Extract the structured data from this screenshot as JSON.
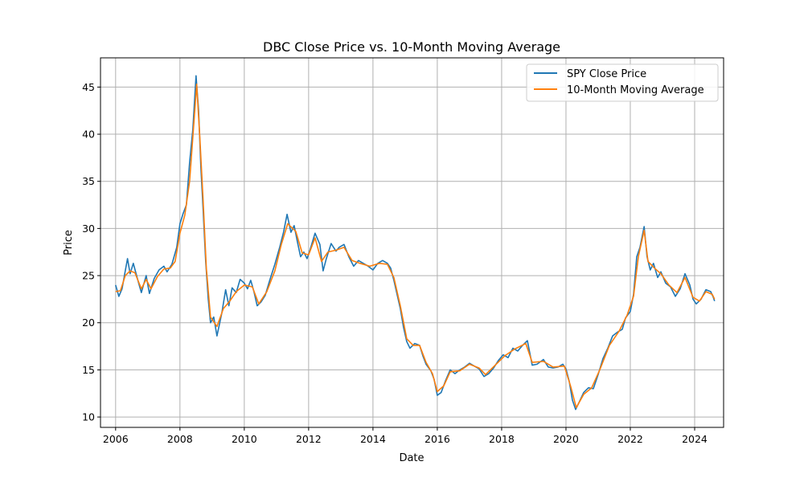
{
  "chart_data": {
    "type": "line",
    "title": "DBC Close Price vs. 10-Month Moving Average",
    "xlabel": "Date",
    "ylabel": "Price",
    "xlim": [
      2005.53,
      2024.9
    ],
    "ylim": [
      8.9,
      48.1
    ],
    "x_ticks": [
      2006,
      2008,
      2010,
      2012,
      2014,
      2016,
      2018,
      2020,
      2022,
      2024
    ],
    "x_tick_labels": [
      "2006",
      "2008",
      "2010",
      "2012",
      "2014",
      "2016",
      "2018",
      "2020",
      "2022",
      "2024"
    ],
    "y_ticks": [
      10,
      15,
      20,
      25,
      30,
      35,
      40,
      45
    ],
    "y_tick_labels": [
      "10",
      "15",
      "20",
      "25",
      "30",
      "35",
      "40",
      "45"
    ],
    "grid": true,
    "legend_position": "upper right",
    "series": [
      {
        "name": "SPY Close Price",
        "color": "#1f77b4",
        "points": [
          [
            2006.0,
            24.0
          ],
          [
            2006.1,
            22.8
          ],
          [
            2006.2,
            23.6
          ],
          [
            2006.3,
            25.5
          ],
          [
            2006.37,
            26.8
          ],
          [
            2006.45,
            25.2
          ],
          [
            2006.55,
            26.3
          ],
          [
            2006.7,
            24.4
          ],
          [
            2006.8,
            23.2
          ],
          [
            2006.95,
            25.0
          ],
          [
            2007.05,
            23.1
          ],
          [
            2007.2,
            24.7
          ],
          [
            2007.35,
            25.6
          ],
          [
            2007.5,
            26.0
          ],
          [
            2007.6,
            25.4
          ],
          [
            2007.75,
            26.2
          ],
          [
            2007.9,
            28.0
          ],
          [
            2008.0,
            30.5
          ],
          [
            2008.1,
            31.6
          ],
          [
            2008.2,
            32.5
          ],
          [
            2008.3,
            37.0
          ],
          [
            2008.4,
            40.5
          ],
          [
            2008.5,
            46.2
          ],
          [
            2008.58,
            42.5
          ],
          [
            2008.65,
            36.5
          ],
          [
            2008.72,
            32.0
          ],
          [
            2008.8,
            26.5
          ],
          [
            2008.88,
            22.5
          ],
          [
            2008.95,
            20.0
          ],
          [
            2009.05,
            20.6
          ],
          [
            2009.15,
            18.6
          ],
          [
            2009.3,
            21.0
          ],
          [
            2009.42,
            23.5
          ],
          [
            2009.52,
            21.8
          ],
          [
            2009.62,
            23.7
          ],
          [
            2009.75,
            23.2
          ],
          [
            2009.87,
            24.6
          ],
          [
            2010.0,
            24.2
          ],
          [
            2010.1,
            23.6
          ],
          [
            2010.2,
            24.5
          ],
          [
            2010.3,
            23.3
          ],
          [
            2010.4,
            21.8
          ],
          [
            2010.52,
            22.2
          ],
          [
            2010.65,
            22.9
          ],
          [
            2010.8,
            24.6
          ],
          [
            2010.95,
            26.2
          ],
          [
            2011.1,
            28.0
          ],
          [
            2011.22,
            29.6
          ],
          [
            2011.33,
            31.5
          ],
          [
            2011.45,
            29.6
          ],
          [
            2011.55,
            30.3
          ],
          [
            2011.65,
            28.6
          ],
          [
            2011.75,
            27.0
          ],
          [
            2011.85,
            27.5
          ],
          [
            2011.95,
            26.8
          ],
          [
            2012.05,
            27.8
          ],
          [
            2012.2,
            29.5
          ],
          [
            2012.35,
            28.3
          ],
          [
            2012.45,
            25.5
          ],
          [
            2012.55,
            26.8
          ],
          [
            2012.7,
            28.4
          ],
          [
            2012.85,
            27.6
          ],
          [
            2012.95,
            28.0
          ],
          [
            2013.1,
            28.3
          ],
          [
            2013.25,
            27.0
          ],
          [
            2013.4,
            26.0
          ],
          [
            2013.55,
            26.6
          ],
          [
            2013.7,
            26.3
          ],
          [
            2013.85,
            26.0
          ],
          [
            2014.0,
            25.6
          ],
          [
            2014.15,
            26.3
          ],
          [
            2014.3,
            26.6
          ],
          [
            2014.45,
            26.3
          ],
          [
            2014.55,
            25.8
          ],
          [
            2014.65,
            24.5
          ],
          [
            2014.75,
            23.0
          ],
          [
            2014.85,
            21.5
          ],
          [
            2014.95,
            19.5
          ],
          [
            2015.05,
            18.0
          ],
          [
            2015.15,
            17.3
          ],
          [
            2015.3,
            17.8
          ],
          [
            2015.45,
            17.6
          ],
          [
            2015.55,
            16.5
          ],
          [
            2015.65,
            15.6
          ],
          [
            2015.8,
            14.9
          ],
          [
            2015.9,
            14.0
          ],
          [
            2016.0,
            12.3
          ],
          [
            2016.12,
            12.6
          ],
          [
            2016.25,
            13.8
          ],
          [
            2016.4,
            15.0
          ],
          [
            2016.55,
            14.6
          ],
          [
            2016.7,
            15.0
          ],
          [
            2016.85,
            15.3
          ],
          [
            2017.0,
            15.7
          ],
          [
            2017.15,
            15.4
          ],
          [
            2017.3,
            15.1
          ],
          [
            2017.45,
            14.3
          ],
          [
            2017.6,
            14.6
          ],
          [
            2017.75,
            15.2
          ],
          [
            2017.9,
            16.0
          ],
          [
            2018.05,
            16.6
          ],
          [
            2018.2,
            16.3
          ],
          [
            2018.35,
            17.3
          ],
          [
            2018.5,
            17.0
          ],
          [
            2018.65,
            17.6
          ],
          [
            2018.8,
            18.1
          ],
          [
            2018.95,
            15.5
          ],
          [
            2019.1,
            15.6
          ],
          [
            2019.3,
            16.1
          ],
          [
            2019.45,
            15.3
          ],
          [
            2019.6,
            15.2
          ],
          [
            2019.75,
            15.3
          ],
          [
            2019.9,
            15.6
          ],
          [
            2020.0,
            15.1
          ],
          [
            2020.1,
            13.8
          ],
          [
            2020.2,
            11.8
          ],
          [
            2020.3,
            10.8
          ],
          [
            2020.4,
            11.5
          ],
          [
            2020.55,
            12.6
          ],
          [
            2020.7,
            13.1
          ],
          [
            2020.85,
            13.0
          ],
          [
            2021.0,
            14.5
          ],
          [
            2021.15,
            16.2
          ],
          [
            2021.3,
            17.3
          ],
          [
            2021.45,
            18.6
          ],
          [
            2021.6,
            19.0
          ],
          [
            2021.75,
            19.3
          ],
          [
            2021.85,
            20.5
          ],
          [
            2022.0,
            21.2
          ],
          [
            2022.1,
            23.0
          ],
          [
            2022.2,
            27.0
          ],
          [
            2022.3,
            28.0
          ],
          [
            2022.43,
            30.2
          ],
          [
            2022.52,
            27.0
          ],
          [
            2022.62,
            25.6
          ],
          [
            2022.72,
            26.3
          ],
          [
            2022.85,
            24.8
          ],
          [
            2022.95,
            25.4
          ],
          [
            2023.1,
            24.2
          ],
          [
            2023.25,
            23.8
          ],
          [
            2023.4,
            22.8
          ],
          [
            2023.55,
            23.6
          ],
          [
            2023.7,
            25.2
          ],
          [
            2023.85,
            24.0
          ],
          [
            2023.95,
            22.5
          ],
          [
            2024.05,
            22.0
          ],
          [
            2024.2,
            22.5
          ],
          [
            2024.35,
            23.5
          ],
          [
            2024.5,
            23.3
          ],
          [
            2024.58,
            22.7
          ],
          [
            2024.62,
            22.3
          ]
        ]
      },
      {
        "name": "10-Month Moving Average",
        "color": "#ff7f0e",
        "points": [
          [
            2006.0,
            23.3
          ],
          [
            2006.15,
            23.4
          ],
          [
            2006.3,
            25.0
          ],
          [
            2006.45,
            25.5
          ],
          [
            2006.6,
            25.3
          ],
          [
            2006.8,
            23.6
          ],
          [
            2006.95,
            24.6
          ],
          [
            2007.1,
            23.6
          ],
          [
            2007.3,
            24.9
          ],
          [
            2007.5,
            25.7
          ],
          [
            2007.7,
            25.8
          ],
          [
            2007.85,
            26.5
          ],
          [
            2008.0,
            29.5
          ],
          [
            2008.15,
            31.4
          ],
          [
            2008.3,
            35.0
          ],
          [
            2008.45,
            42.0
          ],
          [
            2008.52,
            45.3
          ],
          [
            2008.62,
            39.5
          ],
          [
            2008.72,
            33.0
          ],
          [
            2008.82,
            25.8
          ],
          [
            2008.95,
            20.6
          ],
          [
            2009.15,
            19.6
          ],
          [
            2009.35,
            21.5
          ],
          [
            2009.55,
            22.3
          ],
          [
            2009.75,
            23.3
          ],
          [
            2010.0,
            24.0
          ],
          [
            2010.25,
            23.8
          ],
          [
            2010.45,
            22.0
          ],
          [
            2010.7,
            23.3
          ],
          [
            2010.95,
            25.5
          ],
          [
            2011.15,
            28.3
          ],
          [
            2011.35,
            30.5
          ],
          [
            2011.6,
            29.7
          ],
          [
            2011.8,
            27.4
          ],
          [
            2012.0,
            27.2
          ],
          [
            2012.2,
            29.0
          ],
          [
            2012.4,
            26.5
          ],
          [
            2012.6,
            27.5
          ],
          [
            2012.85,
            27.7
          ],
          [
            2013.1,
            28.0
          ],
          [
            2013.35,
            26.6
          ],
          [
            2013.6,
            26.3
          ],
          [
            2013.9,
            26.0
          ],
          [
            2014.2,
            26.3
          ],
          [
            2014.45,
            26.2
          ],
          [
            2014.65,
            24.8
          ],
          [
            2014.85,
            21.8
          ],
          [
            2015.05,
            18.3
          ],
          [
            2015.25,
            17.6
          ],
          [
            2015.45,
            17.6
          ],
          [
            2015.65,
            15.8
          ],
          [
            2015.85,
            14.6
          ],
          [
            2016.0,
            12.7
          ],
          [
            2016.2,
            13.3
          ],
          [
            2016.4,
            14.8
          ],
          [
            2016.7,
            14.9
          ],
          [
            2017.0,
            15.6
          ],
          [
            2017.3,
            15.2
          ],
          [
            2017.5,
            14.5
          ],
          [
            2017.8,
            15.5
          ],
          [
            2018.1,
            16.5
          ],
          [
            2018.4,
            17.2
          ],
          [
            2018.75,
            17.8
          ],
          [
            2018.95,
            15.8
          ],
          [
            2019.3,
            15.9
          ],
          [
            2019.6,
            15.3
          ],
          [
            2019.95,
            15.4
          ],
          [
            2020.15,
            13.2
          ],
          [
            2020.32,
            11.0
          ],
          [
            2020.55,
            12.4
          ],
          [
            2020.8,
            13.1
          ],
          [
            2021.05,
            15.0
          ],
          [
            2021.35,
            17.6
          ],
          [
            2021.65,
            19.1
          ],
          [
            2021.9,
            20.8
          ],
          [
            2022.1,
            22.8
          ],
          [
            2022.25,
            27.0
          ],
          [
            2022.43,
            29.8
          ],
          [
            2022.55,
            26.5
          ],
          [
            2022.75,
            25.8
          ],
          [
            2022.95,
            25.2
          ],
          [
            2023.2,
            24.0
          ],
          [
            2023.45,
            23.2
          ],
          [
            2023.7,
            24.8
          ],
          [
            2023.95,
            22.7
          ],
          [
            2024.15,
            22.3
          ],
          [
            2024.35,
            23.3
          ],
          [
            2024.55,
            23.0
          ],
          [
            2024.62,
            22.5
          ]
        ]
      }
    ]
  }
}
